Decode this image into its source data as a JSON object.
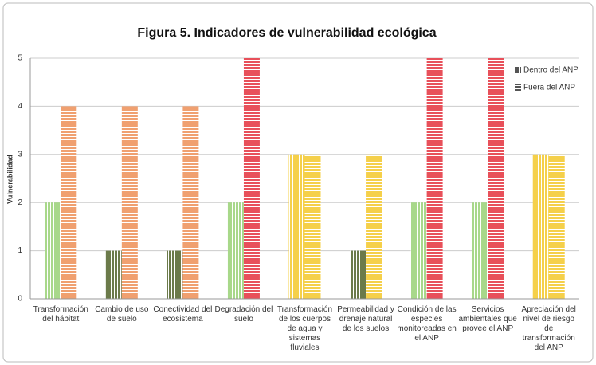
{
  "chart_data": {
    "type": "bar",
    "title": "Figura 5. Indicadores de vulnerabilidad ecológica",
    "y_label": "Vulnerabilidad",
    "categories": [
      "Transformación del hábitat",
      "Cambio de uso de suelo",
      "Conectividad del ecosistema",
      "Degradación del suelo",
      "Transformación de los cuerpos de agua y sistemas fluviales",
      "Permeabilidad y drenaje natural de los suelos",
      "Condición de las especies monitoreadas en el ANP",
      "Servicios ambientales que provee el ANP",
      "Apreciación del nivel de riesgo de transformación del ANP"
    ],
    "series": [
      {
        "name": "Dentro del ANP",
        "color": "#555555",
        "pattern": "vertical",
        "values": [
          2,
          1,
          1,
          2,
          3,
          1,
          2,
          2,
          3
        ],
        "colors": [
          "#a8d88a",
          "#6b7a4a",
          "#6b7a4a",
          "#a8d88a",
          "#f5d04a",
          "#6b7a4a",
          "#a8d88a",
          "#a8d88a",
          "#f5d04a"
        ]
      },
      {
        "name": "Fuera del ANP",
        "color": "#555555",
        "pattern": "horizontal",
        "values": [
          4,
          4,
          4,
          5,
          3,
          3,
          5,
          5,
          3
        ],
        "colors": [
          "#f0a070",
          "#f0a070",
          "#f0a070",
          "#e8505a",
          "#f5d04a",
          "#f5d04a",
          "#e8505a",
          "#e8505a",
          "#f5d04a"
        ]
      }
    ],
    "ylim": [
      0,
      5
    ],
    "yticks": [
      0,
      1,
      2,
      3,
      4,
      5
    ],
    "grid": true,
    "legend": "top-right"
  }
}
